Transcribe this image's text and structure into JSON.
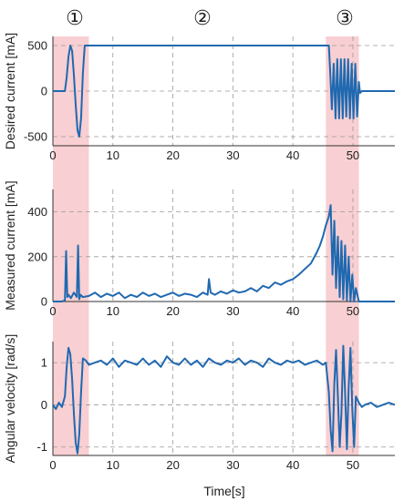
{
  "phase_markers": [
    "①",
    "②",
    "③"
  ],
  "shared_xlabel": "Time[s]",
  "colors": {
    "line": "#2069b0",
    "highlight": "#f8cfd2",
    "grid": "#9a9a9a",
    "axis": "#333333"
  },
  "highlight_regions": [
    [
      0,
      6
    ],
    [
      45.5,
      51
    ]
  ],
  "chart_data": [
    {
      "type": "line",
      "ylabel": "Desired current [mA]",
      "xlim": [
        0,
        57
      ],
      "ylim": [
        -600,
        600
      ],
      "xticks": [
        0,
        10,
        20,
        30,
        40,
        50
      ],
      "yticks": [
        -500,
        0,
        500
      ],
      "grid": true,
      "series": [
        {
          "x": [
            0,
            2.0,
            2.3,
            2.6,
            2.9,
            3.2,
            3.5,
            3.8,
            4.1,
            4.4,
            4.7,
            5.0,
            5.3,
            6,
            10,
            20,
            30,
            40,
            45.5,
            46.0,
            46.2,
            46.5,
            46.8,
            47.1,
            47.4,
            47.7,
            48.0,
            48.3,
            48.6,
            48.9,
            49.2,
            49.5,
            49.8,
            50.1,
            50.4,
            50.7,
            51.0,
            51.2,
            51.5,
            53,
            57
          ],
          "y": [
            0,
            0,
            150,
            380,
            500,
            440,
            180,
            -150,
            -430,
            -500,
            -300,
            200,
            500,
            500,
            500,
            500,
            500,
            500,
            500,
            500,
            250,
            -200,
            300,
            -300,
            350,
            -300,
            350,
            -300,
            350,
            -280,
            350,
            -300,
            300,
            -300,
            300,
            -280,
            100,
            -20,
            0,
            0,
            0
          ]
        }
      ]
    },
    {
      "type": "line",
      "ylabel": "Measured current [mA]",
      "xlim": [
        0,
        57
      ],
      "ylim": [
        0,
        500
      ],
      "xticks": [
        0,
        10,
        20,
        30,
        40,
        50
      ],
      "yticks": [
        0,
        200,
        400
      ],
      "grid": true,
      "series": [
        {
          "x": [
            0,
            1.5,
            2.0,
            2.2,
            2.4,
            2.6,
            3.0,
            3.5,
            4.0,
            4.2,
            4.4,
            4.6,
            5.0,
            6,
            7,
            8,
            9,
            10,
            11,
            12,
            13,
            14,
            15,
            16,
            17,
            18,
            19,
            20,
            21,
            22,
            23,
            24,
            25,
            25.8,
            26.0,
            26.3,
            27,
            28,
            29,
            30,
            31,
            32,
            33,
            34,
            35,
            36,
            37,
            38,
            39,
            40,
            41,
            42,
            43,
            44,
            44.5,
            45,
            45.5,
            46,
            46.3,
            46.6,
            46.9,
            47.2,
            47.5,
            47.8,
            48.1,
            48.4,
            48.7,
            49.0,
            49.3,
            49.6,
            49.9,
            50.2,
            50.5,
            51,
            52,
            54,
            57
          ],
          "y": [
            0,
            0,
            5,
            225,
            20,
            30,
            15,
            40,
            20,
            250,
            10,
            30,
            20,
            25,
            40,
            20,
            35,
            25,
            40,
            15,
            30,
            20,
            40,
            25,
            35,
            20,
            30,
            40,
            25,
            35,
            30,
            20,
            40,
            30,
            100,
            40,
            30,
            45,
            35,
            50,
            40,
            45,
            60,
            45,
            70,
            60,
            85,
            75,
            90,
            100,
            120,
            145,
            170,
            220,
            250,
            290,
            340,
            380,
            430,
            120,
            360,
            60,
            290,
            20,
            270,
            10,
            250,
            5,
            200,
            0,
            120,
            0,
            60,
            0,
            0,
            0,
            0
          ]
        }
      ]
    },
    {
      "type": "line",
      "ylabel": "Angular velocity [rad/s]",
      "xlim": [
        0,
        57
      ],
      "ylim": [
        -1.2,
        1.5
      ],
      "xticks": [
        0,
        10,
        20,
        30,
        40,
        50
      ],
      "yticks": [
        -1,
        0,
        1
      ],
      "grid": true,
      "series": [
        {
          "x": [
            0,
            0.5,
            1.0,
            1.5,
            2.0,
            2.3,
            2.6,
            2.9,
            3.2,
            3.5,
            3.8,
            4.1,
            4.4,
            4.7,
            5.0,
            5.5,
            6,
            7,
            8,
            9,
            10,
            11,
            12,
            13,
            14,
            15,
            16,
            17,
            18,
            19,
            20,
            21,
            22,
            23,
            24,
            25,
            26,
            27,
            28,
            29,
            30,
            31,
            32,
            33,
            34,
            35,
            36,
            37,
            38,
            39,
            40,
            41,
            42,
            43,
            44,
            45,
            45.5,
            46.0,
            46.3,
            46.6,
            46.9,
            47.2,
            47.5,
            47.8,
            48.1,
            48.4,
            48.7,
            49.0,
            49.3,
            49.6,
            49.9,
            50.2,
            50.5,
            51,
            51.5,
            52,
            53,
            54,
            55,
            56,
            57
          ],
          "y": [
            0,
            -0.1,
            0.05,
            -0.05,
            0.2,
            0.9,
            1.35,
            1.2,
            0.6,
            -0.2,
            -0.9,
            -1.15,
            -0.7,
            0.3,
            1.1,
            1.05,
            0.95,
            1.0,
            1.05,
            0.95,
            1.1,
            0.9,
            1.05,
            1.0,
            0.95,
            1.1,
            0.95,
            1.05,
            0.9,
            1.15,
            1.0,
            0.95,
            1.1,
            0.95,
            1.05,
            0.9,
            1.1,
            1.0,
            0.95,
            1.05,
            1.0,
            1.1,
            0.95,
            1.05,
            1.0,
            0.9,
            1.1,
            1.0,
            0.95,
            1.05,
            1.0,
            1.05,
            0.95,
            1.0,
            1.05,
            0.95,
            1.0,
            0.3,
            -0.6,
            -1.1,
            0.5,
            1.3,
            0.2,
            -1.0,
            -0.2,
            1.4,
            0.3,
            -1.05,
            0.4,
            1.35,
            -0.1,
            -1.0,
            0.2,
            0.05,
            -0.05,
            0.0,
            0.05,
            -0.05,
            0.0,
            0.05,
            0.0
          ]
        }
      ]
    }
  ]
}
